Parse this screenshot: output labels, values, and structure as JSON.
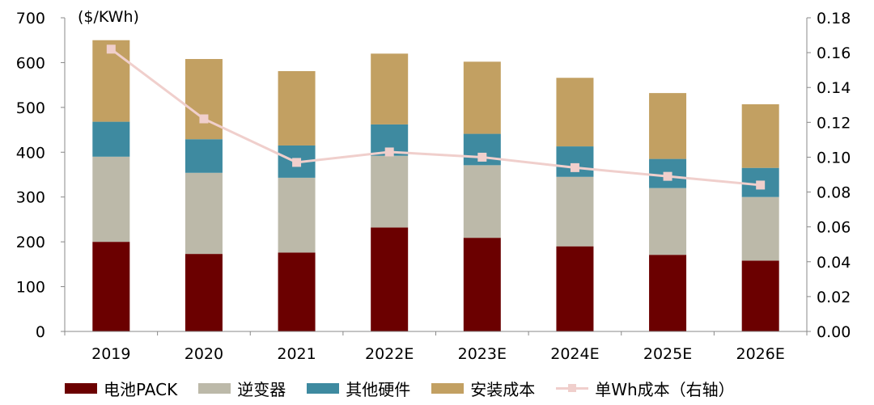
{
  "chart_data": {
    "type": "bar",
    "stacked": true,
    "categories": [
      "2019",
      "2020",
      "2021",
      "2022E",
      "2023E",
      "2024E",
      "2025E",
      "2026E"
    ],
    "left_axis": {
      "unit": "($/KWh)",
      "ylim": [
        0,
        700
      ],
      "ticks": [
        "0",
        "100",
        "200",
        "300",
        "400",
        "500",
        "600",
        "700"
      ]
    },
    "right_axis": {
      "ylim": [
        0,
        0.18
      ],
      "ticks": [
        "0.00",
        "0.02",
        "0.04",
        "0.06",
        "0.08",
        "0.10",
        "0.12",
        "0.14",
        "0.16",
        "0.18"
      ]
    },
    "series": [
      {
        "name": "电池PACK",
        "color": "#6b0000",
        "values": [
          200,
          173,
          176,
          232,
          209,
          190,
          171,
          158
        ]
      },
      {
        "name": "逆变器",
        "color": "#bcb9a9",
        "values": [
          190,
          181,
          167,
          160,
          162,
          155,
          149,
          142
        ]
      },
      {
        "name": "其他硬件",
        "color": "#3e8aa0",
        "values": [
          78,
          75,
          72,
          70,
          70,
          68,
          65,
          65
        ]
      },
      {
        "name": "安装成本",
        "color": "#c2a062",
        "values": [
          182,
          179,
          166,
          158,
          161,
          153,
          147,
          142
        ]
      }
    ],
    "line_series": {
      "name": "单Wh成本（右轴）",
      "color": "#f0cfcc",
      "axis": "right",
      "values": [
        0.162,
        0.122,
        0.097,
        0.103,
        0.1,
        0.094,
        0.089,
        0.084
      ]
    },
    "legend_position": "bottom",
    "grid": false
  }
}
